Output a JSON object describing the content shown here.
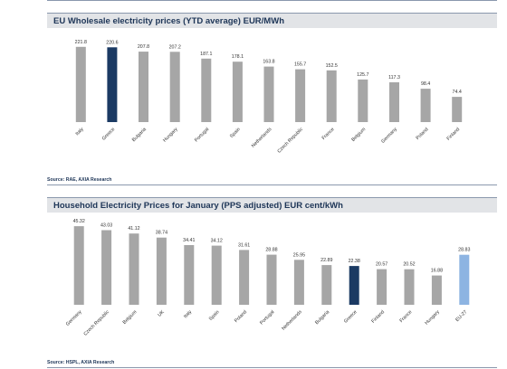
{
  "chart_data": [
    {
      "type": "bar",
      "title": "EU Wholesale electricity prices (YTD average) EUR/MWh",
      "source": "Source: RAE, AXIA Research",
      "categories": [
        "Italy",
        "Greece",
        "Bulgaria",
        "Hungary",
        "Portugal",
        "Spain",
        "Netherlands",
        "Czech Republic",
        "France",
        "Belgium",
        "Germany",
        "Poland",
        "Finland"
      ],
      "values": [
        221.8,
        220.6,
        207.8,
        207.2,
        187.1,
        178.1,
        163.8,
        155.7,
        152.5,
        125.7,
        117.3,
        98.4,
        74.4
      ],
      "value_labels": [
        "221.8",
        "220.6",
        "207.8",
        "207.2",
        "187.1",
        "178.1",
        "163.8",
        "155.7",
        "152.5",
        "125.7",
        "117.3",
        "98.4",
        "74.4"
      ],
      "highlight": {
        "Greece": "#1b3a63"
      },
      "bar_color": "#a6a6a6",
      "ylim": [
        0,
        240
      ],
      "grid": false
    },
    {
      "type": "bar",
      "title": "Household Electricity Prices for January (PPS adjusted) EUR cent/kWh",
      "source": "Source: HSPL, AXIA Research",
      "categories": [
        "Germany",
        "Czech Republic",
        "Belgium",
        "UK",
        "Italy",
        "Spain",
        "Poland",
        "Portugal",
        "Netherlands",
        "Bulgaria",
        "Greece",
        "Finland",
        "France",
        "Hungary",
        "EU-27"
      ],
      "values": [
        45.32,
        43.03,
        41.12,
        38.74,
        34.41,
        34.12,
        31.61,
        28.88,
        25.95,
        22.89,
        22.38,
        20.57,
        20.52,
        16.88,
        28.83
      ],
      "value_labels": [
        "45.32",
        "43.03",
        "41.12",
        "38.74",
        "34.41",
        "34.12",
        "31.61",
        "28.88",
        "25.95",
        "22.89",
        "22.38",
        "20.57",
        "20.52",
        "16.88",
        "28.83"
      ],
      "highlight": {
        "Greece": "#1b3a63",
        "EU-27": "#8db4e2"
      },
      "bar_color": "#a6a6a6",
      "ylim": [
        0,
        48
      ],
      "grid": false
    }
  ]
}
